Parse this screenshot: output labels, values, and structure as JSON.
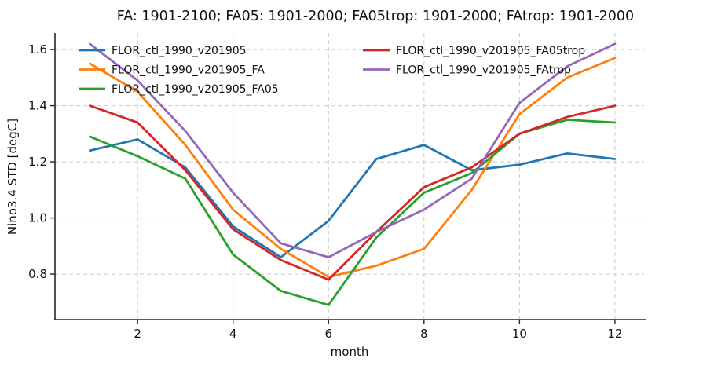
{
  "title": "FA: 1901-2100; FA05: 1901-2000; FA05trop: 1901-2000; FAtrop: 1901-2000",
  "chart_data": {
    "type": "line",
    "title": "FA: 1901-2100; FA05: 1901-2000; FA05trop: 1901-2000; FAtrop: 1901-2000",
    "xlabel": "month",
    "ylabel": "Nino3.4 STD [degC]",
    "x": [
      1,
      2,
      3,
      4,
      5,
      6,
      7,
      8,
      9,
      10,
      11,
      12
    ],
    "xlim": [
      0.27,
      12.61
    ],
    "ylim": [
      0.638,
      1.659
    ],
    "xticks": [
      2,
      4,
      6,
      8,
      10,
      12
    ],
    "xticklabels": [
      "2",
      "4",
      "6",
      "8",
      "10",
      "12"
    ],
    "yticks": [
      0.8,
      1.0,
      1.2,
      1.4,
      1.6
    ],
    "yticklabels": [
      "0.8",
      "1.0",
      "1.2",
      "1.4",
      "1.6"
    ],
    "grid": true,
    "grid_style": "dashed",
    "grid_color": "#c9c9c9",
    "legend_position": "upper-center-inside, 2 columns, no frame",
    "series": [
      {
        "name": "FLOR_ctl_1990_v201905",
        "color": "#1f77b4",
        "values": [
          1.24,
          1.28,
          1.18,
          0.97,
          0.86,
          0.99,
          1.21,
          1.26,
          1.17,
          1.19,
          1.23,
          1.21
        ]
      },
      {
        "name": "FLOR_ctl_1990_v201905_FA",
        "color": "#ff7f0e",
        "values": [
          1.55,
          1.45,
          1.26,
          1.03,
          0.89,
          0.79,
          0.83,
          0.89,
          1.1,
          1.37,
          1.5,
          1.57
        ]
      },
      {
        "name": "FLOR_ctl_1990_v201905_FA05",
        "color": "#2ca02c",
        "values": [
          1.29,
          1.22,
          1.14,
          0.87,
          0.74,
          0.69,
          0.93,
          1.09,
          1.16,
          1.3,
          1.35,
          1.34
        ]
      },
      {
        "name": "FLOR_ctl_1990_v201905_FA05trop",
        "color": "#d62728",
        "values": [
          1.4,
          1.34,
          1.17,
          0.96,
          0.85,
          0.78,
          0.95,
          1.11,
          1.18,
          1.3,
          1.36,
          1.4
        ]
      },
      {
        "name": "FLOR_ctl_1990_v201905_FAtrop",
        "color": "#9467bd",
        "values": [
          1.62,
          1.49,
          1.31,
          1.09,
          0.91,
          0.86,
          0.95,
          1.03,
          1.14,
          1.41,
          1.54,
          1.62
        ]
      }
    ]
  }
}
